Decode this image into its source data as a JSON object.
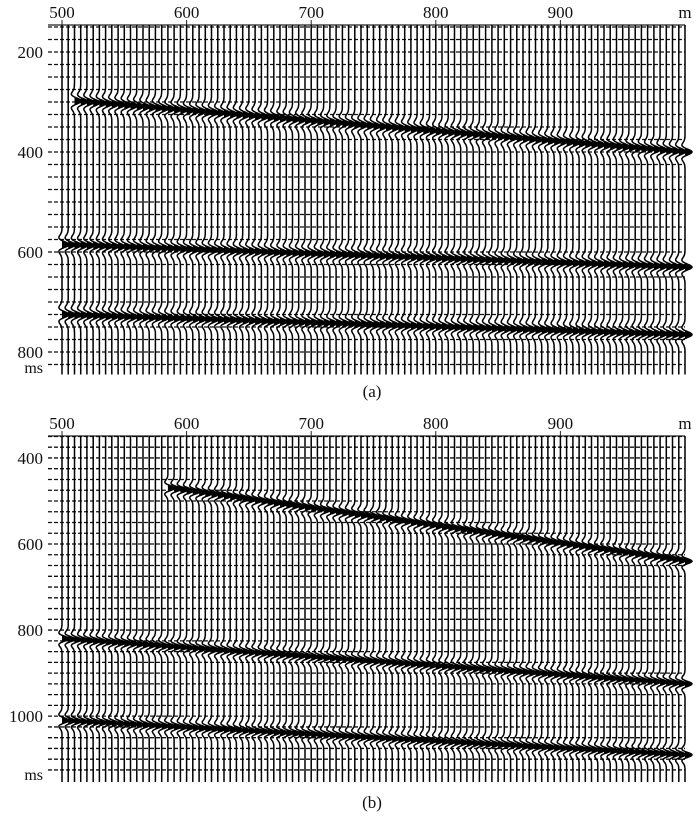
{
  "chart_data": [
    {
      "type": "seismic-wiggle",
      "caption": "(a)",
      "x_unit": "m",
      "y_unit": "ms",
      "xlim": [
        500,
        1000
      ],
      "ylim": [
        146,
        846
      ],
      "xticks": [
        "500",
        "600",
        "700",
        "800",
        "900"
      ],
      "xtick_values": [
        500,
        600,
        700,
        800,
        900
      ],
      "yticks": [
        "200",
        "400",
        "600",
        "800"
      ],
      "ytick_values": [
        200,
        400,
        600,
        800
      ],
      "minor_y_step": 25,
      "trace_spacing": 5,
      "events": [
        {
          "x_start": 510,
          "t_start": 298,
          "x_end": 1000,
          "t_end": 400
        },
        {
          "x_start": 500,
          "t_start": 585,
          "x_end": 1000,
          "t_end": 630
        },
        {
          "x_start": 500,
          "t_start": 725,
          "x_end": 1000,
          "t_end": 765
        }
      ]
    },
    {
      "type": "seismic-wiggle",
      "caption": "(b)",
      "x_unit": "m",
      "y_unit": "ms",
      "xlim": [
        500,
        1000
      ],
      "ylim": [
        349,
        1153
      ],
      "xticks": [
        "500",
        "600",
        "700",
        "800",
        "900"
      ],
      "xtick_values": [
        500,
        600,
        700,
        800,
        900
      ],
      "yticks": [
        "400",
        "600",
        "800",
        "1000"
      ],
      "ytick_values": [
        400,
        600,
        800,
        1000
      ],
      "minor_y_step": 25,
      "trace_spacing": 5,
      "events": [
        {
          "x_start": 585,
          "t_start": 470,
          "x_end": 1000,
          "t_end": 640
        },
        {
          "x_start": 500,
          "t_start": 820,
          "x_end": 1000,
          "t_end": 925
        },
        {
          "x_start": 500,
          "t_start": 1010,
          "x_end": 1000,
          "t_end": 1090
        }
      ]
    }
  ]
}
